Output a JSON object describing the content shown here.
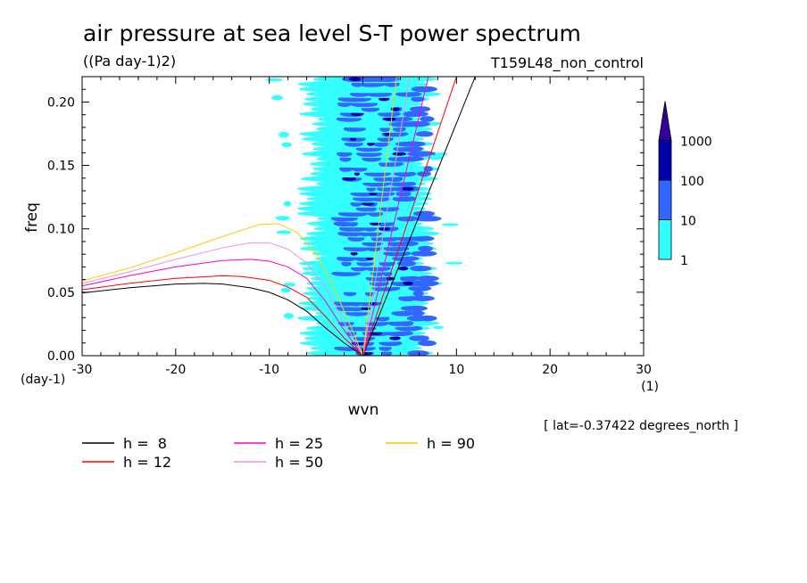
{
  "chart_data": {
    "type": "heatmap",
    "title": "air pressure at sea level S-T power spectrum",
    "units": "((Pa day-1)2)",
    "experiment": "T159L48_non_control",
    "xlabel": "wvn",
    "ylabel": "freq",
    "xunit": "(1)",
    "yunit": "(day-1)",
    "xlim": [
      -30,
      30
    ],
    "ylim": [
      0,
      0.22
    ],
    "xticks": [
      "-30",
      "-20",
      "-10",
      "0",
      "10",
      "20",
      "30"
    ],
    "yticks": [
      "0.00",
      "0.05",
      "0.10",
      "0.15",
      "0.20"
    ],
    "annotation": "[ lat=-0.37422 degrees_north ]",
    "colorbar": {
      "levels": [
        "1",
        "10",
        "100",
        "1000"
      ],
      "colors": [
        "#33FFFF",
        "#3366FF",
        "#0000AA",
        "#330099"
      ],
      "extend": "max"
    },
    "contour_band": {
      "wvn_range": [
        -6,
        7
      ],
      "strongest_wvn": [
        -1,
        4
      ]
    },
    "dispersion_curves": [
      {
        "name": "h =  8",
        "h": 8,
        "color": "#000000",
        "rossby": [
          [
            -30,
            0.0495
          ],
          [
            -25,
            0.0535
          ],
          [
            -20,
            0.0565
          ],
          [
            -17,
            0.057
          ],
          [
            -15,
            0.0565
          ],
          [
            -12,
            0.0535
          ],
          [
            -10,
            0.05
          ],
          [
            -8,
            0.044
          ],
          [
            -6,
            0.035
          ],
          [
            -4,
            0.022
          ],
          [
            -2,
            0.01
          ],
          [
            0,
            0
          ]
        ],
        "kelvin": [
          [
            0,
            0
          ],
          [
            12,
            0.22
          ]
        ]
      },
      {
        "name": "h = 12",
        "h": 12,
        "color": "#FF0000",
        "rossby": [
          [
            -30,
            0.052
          ],
          [
            -25,
            0.057
          ],
          [
            -20,
            0.061
          ],
          [
            -15,
            0.063
          ],
          [
            -13,
            0.0625
          ],
          [
            -10,
            0.0595
          ],
          [
            -8,
            0.054
          ],
          [
            -6,
            0.046
          ],
          [
            -4,
            0.031
          ],
          [
            -2,
            0.014
          ],
          [
            0,
            0
          ]
        ],
        "kelvin": [
          [
            0,
            0
          ],
          [
            10,
            0.22
          ]
        ]
      },
      {
        "name": "h = 25",
        "h": 25,
        "color": "#FF00CC",
        "rossby": [
          [
            -30,
            0.055
          ],
          [
            -25,
            0.063
          ],
          [
            -20,
            0.07
          ],
          [
            -15,
            0.075
          ],
          [
            -12,
            0.076
          ],
          [
            -10,
            0.0745
          ],
          [
            -8,
            0.07
          ],
          [
            -6,
            0.061
          ],
          [
            -4,
            0.043
          ],
          [
            -2,
            0.02
          ],
          [
            0,
            0
          ]
        ],
        "kelvin": [
          [
            0,
            0
          ],
          [
            7,
            0.22
          ]
        ]
      },
      {
        "name": "h = 50",
        "h": 50,
        "color": "#E596E5",
        "rossby": [
          [
            -30,
            0.057
          ],
          [
            -25,
            0.066
          ],
          [
            -20,
            0.076
          ],
          [
            -15,
            0.085
          ],
          [
            -12,
            0.089
          ],
          [
            -10,
            0.089
          ],
          [
            -8,
            0.084
          ],
          [
            -6,
            0.073
          ],
          [
            -4,
            0.054
          ],
          [
            -2,
            0.026
          ],
          [
            0,
            0
          ]
        ],
        "kelvin": [
          [
            0,
            0
          ],
          [
            5,
            0.22
          ]
        ]
      },
      {
        "name": "h = 90",
        "h": 90,
        "color": "#FFCC00",
        "rossby": [
          [
            -30,
            0.059
          ],
          [
            -25,
            0.069
          ],
          [
            -20,
            0.081
          ],
          [
            -15,
            0.094
          ],
          [
            -11,
            0.1035
          ],
          [
            -9,
            0.104
          ],
          [
            -7,
            0.097
          ],
          [
            -5,
            0.08
          ],
          [
            -3,
            0.052
          ],
          [
            -1,
            0.018
          ],
          [
            0,
            0
          ]
        ],
        "kelvin": [
          [
            0,
            0
          ],
          [
            3.6,
            0.22
          ]
        ]
      }
    ]
  }
}
